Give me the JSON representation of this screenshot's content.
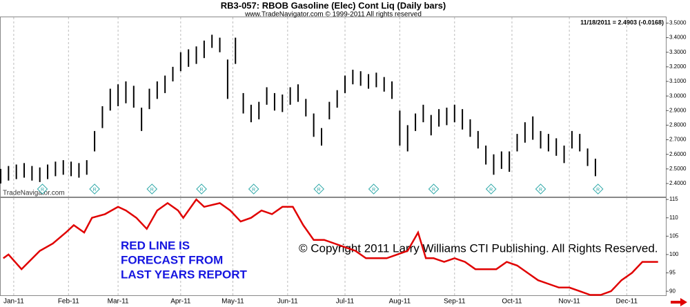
{
  "chart_data": [
    {
      "type": "ohlc",
      "title": "RB3-057:  RBOB Gasoline (Elec) Cont Liq  (Daily bars)",
      "subtitle": "www.TradeNavigator.com © 1999-2011 All rights reserved",
      "last_quote": "11/18/2011 = 2.4903 (-0.0168)",
      "watermark": "TradeNavigator.com",
      "color": "#000000",
      "xlim": [
        0,
        255
      ],
      "ylim": [
        2.31,
        3.54
      ],
      "yticks": [
        {
          "value": 2.4,
          "label": "2.4000"
        },
        {
          "value": 2.5,
          "label": "2.5000"
        },
        {
          "value": 2.6,
          "label": "2.6000"
        },
        {
          "value": 2.7,
          "label": "2.7000"
        },
        {
          "value": 2.8,
          "label": "2.8000"
        },
        {
          "value": 2.9,
          "label": "2.9000"
        },
        {
          "value": 3.0,
          "label": "3.0000"
        },
        {
          "value": 3.1,
          "label": "3.1000"
        },
        {
          "value": 3.2,
          "label": "3.2000"
        },
        {
          "value": 3.3,
          "label": "3.3000"
        },
        {
          "value": 3.4,
          "label": "3.4000"
        },
        {
          "value": 3.5,
          "label": "3.5000"
        }
      ],
      "x": [
        0,
        3,
        6,
        9,
        12,
        15,
        18,
        21,
        24,
        27,
        30,
        33,
        36,
        39,
        42,
        45,
        48,
        51,
        54,
        57,
        60,
        63,
        66,
        69,
        72,
        75,
        78,
        81,
        84,
        87,
        90,
        93,
        96,
        99,
        102,
        105,
        108,
        111,
        114,
        117,
        120,
        123,
        126,
        129,
        132,
        135,
        138,
        141,
        144,
        147,
        150,
        153,
        156,
        159,
        162,
        165,
        168,
        171,
        174,
        177,
        180,
        183,
        186,
        189,
        192,
        195,
        198,
        201,
        204,
        207,
        210,
        213,
        216,
        219,
        222,
        225,
        228
      ],
      "high": [
        2.5,
        2.52,
        2.53,
        2.54,
        2.52,
        2.51,
        2.53,
        2.55,
        2.56,
        2.55,
        2.54,
        2.56,
        2.76,
        2.93,
        3.05,
        3.08,
        3.1,
        3.07,
        2.92,
        3.05,
        3.1,
        3.14,
        3.2,
        3.3,
        3.32,
        3.34,
        3.38,
        3.42,
        3.4,
        3.25,
        3.4,
        3.02,
        2.94,
        2.96,
        3.06,
        3.02,
        3.01,
        3.06,
        3.08,
        2.98,
        2.88,
        2.78,
        2.96,
        3.04,
        3.14,
        3.18,
        3.17,
        3.15,
        3.16,
        3.13,
        3.1,
        2.9,
        2.8,
        2.88,
        2.94,
        2.87,
        2.91,
        2.92,
        2.94,
        2.91,
        2.84,
        2.76,
        2.66,
        2.6,
        2.62,
        2.62,
        2.74,
        2.82,
        2.86,
        2.76,
        2.74,
        2.71,
        2.66,
        2.76,
        2.74,
        2.64,
        2.57
      ],
      "low": [
        2.4,
        2.42,
        2.43,
        2.44,
        2.42,
        2.41,
        2.43,
        2.45,
        2.46,
        2.45,
        2.44,
        2.46,
        2.62,
        2.78,
        2.9,
        2.93,
        2.95,
        2.92,
        2.76,
        2.91,
        2.98,
        3.02,
        3.1,
        3.17,
        3.2,
        3.22,
        3.26,
        3.33,
        3.3,
        2.98,
        3.22,
        2.88,
        2.82,
        2.84,
        2.94,
        2.9,
        2.89,
        2.94,
        2.96,
        2.86,
        2.72,
        2.66,
        2.84,
        2.92,
        3.02,
        3.08,
        3.07,
        3.05,
        3.06,
        3.03,
        2.98,
        2.66,
        2.62,
        2.76,
        2.82,
        2.73,
        2.79,
        2.8,
        2.82,
        2.77,
        2.72,
        2.64,
        2.53,
        2.46,
        2.5,
        2.48,
        2.62,
        2.68,
        2.7,
        2.64,
        2.62,
        2.59,
        2.54,
        2.64,
        2.62,
        2.52,
        2.45
      ],
      "markers": {
        "label": "R",
        "color": "#2aa6a6",
        "x": [
          16,
          36,
          58,
          77,
          97,
          122,
          143,
          166,
          188,
          207,
          229
        ]
      }
    },
    {
      "type": "line",
      "color": "#e00000",
      "annotation": [
        "RED LINE IS",
        "FORECAST FROM",
        "LAST YEARS REPORT"
      ],
      "copyright": "© Copyright 2011 Larry Williams CTI Publishing. All Rights Reserved.",
      "xlim": [
        0,
        255
      ],
      "ylim": [
        88.9,
        115.4
      ],
      "yticks": [
        90,
        95,
        100,
        105,
        110,
        115
      ],
      "xticks": [
        {
          "value": 5,
          "label": "Jan-11"
        },
        {
          "value": 26,
          "label": "Feb-11"
        },
        {
          "value": 45,
          "label": "Mar-11"
        },
        {
          "value": 69,
          "label": "Apr-11"
        },
        {
          "value": 89,
          "label": "May-11"
        },
        {
          "value": 110,
          "label": "Jun-11"
        },
        {
          "value": 132,
          "label": "Jul-11"
        },
        {
          "value": 153,
          "label": "Aug-11"
        },
        {
          "value": 174,
          "label": "Sep-11"
        },
        {
          "value": 196,
          "label": "Oct-11"
        },
        {
          "value": 218,
          "label": "Nov-11"
        },
        {
          "value": 240,
          "label": "Dec-11"
        }
      ],
      "grid": true,
      "x": [
        1,
        3,
        8,
        15,
        20,
        25,
        28,
        32,
        35,
        40,
        45,
        48,
        52,
        56,
        60,
        64,
        68,
        70,
        75,
        78,
        84,
        88,
        92,
        96,
        100,
        104,
        108,
        112,
        116,
        120,
        124,
        128,
        132,
        136,
        140,
        144,
        148,
        152,
        156,
        160,
        163,
        166,
        170,
        174,
        178,
        182,
        186,
        190,
        194,
        198,
        202,
        206,
        210,
        214,
        218,
        222,
        226,
        230,
        234,
        238,
        242,
        246,
        250,
        252
      ],
      "values": [
        99,
        100,
        96,
        101,
        103,
        106,
        108,
        106,
        110,
        111,
        113,
        112,
        110,
        107,
        112,
        114,
        112,
        110,
        115,
        113,
        114,
        112,
        109,
        110,
        112,
        111,
        113,
        113,
        108,
        104,
        104,
        103,
        102,
        101,
        99,
        99,
        99,
        100,
        101,
        106,
        99,
        99,
        98,
        99,
        98,
        96,
        96,
        96,
        98,
        97,
        95,
        93,
        92,
        91,
        91,
        90,
        89,
        89,
        90,
        93,
        95,
        98,
        98,
        98
      ]
    }
  ]
}
